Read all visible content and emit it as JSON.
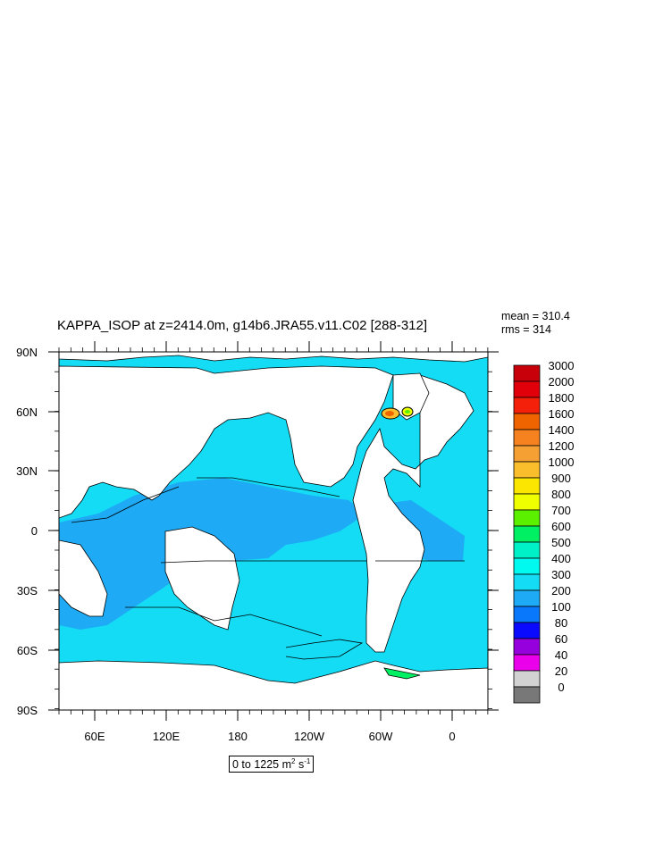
{
  "title": "KAPPA_ISOP at z=2414.0m, g14b6.JRA55.v11.C02 [288-312]",
  "stats": {
    "mean": "mean = 310.4",
    "rms": "rms = 314"
  },
  "range_label": {
    "text": "0 to 1225 m",
    "unit_exp1": "2",
    "mid": " s",
    "unit_exp2": "-1"
  },
  "lat_labels": [
    "90N",
    "60N",
    "30N",
    "0",
    "30S",
    "60S",
    "90S"
  ],
  "lon_labels": [
    "60E",
    "120E",
    "180",
    "120W",
    "60W",
    "0"
  ],
  "colorbar": {
    "labels": [
      "3000",
      "2000",
      "1800",
      "1600",
      "1400",
      "1200",
      "1000",
      "900",
      "800",
      "700",
      "600",
      "500",
      "400",
      "300",
      "200",
      "100",
      "80",
      "60",
      "40",
      "20",
      "0"
    ],
    "colors": [
      "#c8000a",
      "#e1000a",
      "#f5200a",
      "#f06400",
      "#f5821e",
      "#f5a032",
      "#fabe2d",
      "#fae600",
      "#f0ff00",
      "#5af000",
      "#00f064",
      "#00f0c8",
      "#00faf0",
      "#14dcf5",
      "#1eaaf5",
      "#0a78fa",
      "#0a0aff",
      "#9600dc",
      "#eb00eb",
      "#d2d2d2",
      "#787878"
    ]
  },
  "map_colors": {
    "ocean_main": "#14dcf5",
    "ocean_band_200_300": "#1eaaf5",
    "land": "#ffffff"
  }
}
